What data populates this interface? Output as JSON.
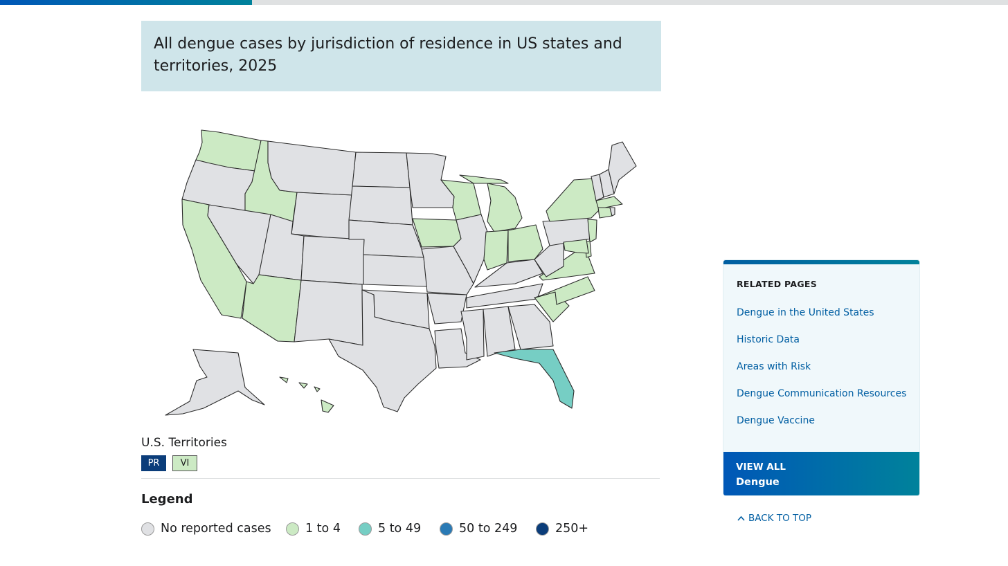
{
  "progress": {
    "fraction": 0.25,
    "fill_color": "#0057b7"
  },
  "map": {
    "title": "All dengue cases by jurisdiction of residence in US states and territories, 2025",
    "color_scale": {
      "none": "#e0e1e4",
      "1-4": "#cceac4",
      "5-49": "#76cec4",
      "50-249": "#2a7ab5",
      "250+": "#0b3d7a"
    },
    "states_with_cases": {
      "1 to 4": [
        "WA",
        "ID",
        "CA",
        "AZ",
        "IA",
        "WI",
        "MI",
        "IN",
        "OH",
        "NY",
        "MA",
        "CT",
        "NJ",
        "DE",
        "MD",
        "VA",
        "NC",
        "SC",
        "HI"
      ],
      "5 to 49": [
        "FL"
      ]
    }
  },
  "territories": {
    "label": "U.S. Territories",
    "items": [
      {
        "code": "PR",
        "category": "250+"
      },
      {
        "code": "VI",
        "category": "1 to 4"
      }
    ]
  },
  "legend": {
    "title": "Legend",
    "items": [
      {
        "label": "No reported cases",
        "color": "#e0e1e4"
      },
      {
        "label": "1 to 4",
        "color": "#cceac4"
      },
      {
        "label": "5 to 49",
        "color": "#76cec4"
      },
      {
        "label": "50 to 249",
        "color": "#2a7ab5"
      },
      {
        "label": "250+",
        "color": "#0b3d7a"
      }
    ]
  },
  "sidebar": {
    "heading": "RELATED PAGES",
    "links": [
      "Dengue in the United States",
      "Historic Data",
      "Areas with Risk",
      "Dengue Communication Resources",
      "Dengue Vaccine"
    ],
    "view_all_label": "VIEW ALL",
    "view_all_target": "Dengue"
  },
  "back_to_top": {
    "label": "BACK TO TOP",
    "icon": "chevron-up-icon"
  }
}
